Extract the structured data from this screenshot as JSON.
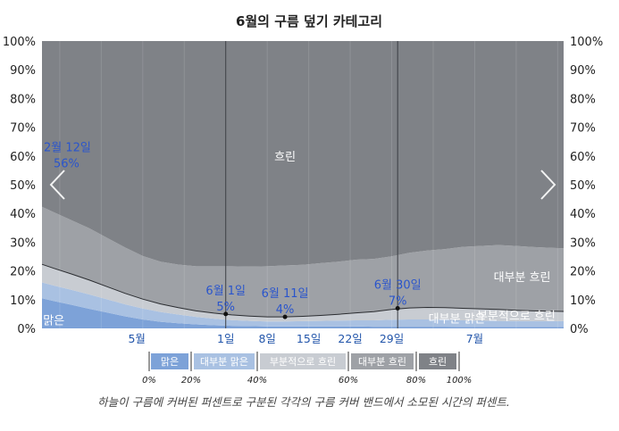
{
  "chart_data": {
    "type": "area",
    "title": "6월의 구름 덮기 카테고리",
    "caption": "하늘이 구름에 커버된 퍼센트로 구분된 각각의 구름 커버 밴드에서 소모된 시간의 퍼센트.",
    "ylim": [
      0,
      100
    ],
    "y_left_ticks": [
      "0%",
      "10%",
      "20%",
      "30%",
      "40%",
      "50%",
      "60%",
      "70%",
      "80%",
      "90%",
      "100%"
    ],
    "y_right_ticks": [
      "100%",
      "90%",
      "80%",
      "70%",
      "60%",
      "50%",
      "40%",
      "30%",
      "20%",
      "10%",
      "0%"
    ],
    "x_ticks": [
      {
        "day": 17,
        "label": "5월"
      },
      {
        "day": 32,
        "label": "1일"
      },
      {
        "day": 39,
        "label": "8일"
      },
      {
        "day": 46,
        "label": "15일"
      },
      {
        "day": 53,
        "label": "22일"
      },
      {
        "day": 60,
        "label": "29일"
      },
      {
        "day": 74,
        "label": "7월"
      }
    ],
    "x_days": [
      1,
      3,
      6,
      9,
      12,
      15,
      18,
      21,
      24,
      27,
      30,
      33,
      36,
      39,
      42,
      45,
      48,
      51,
      54,
      57,
      60,
      63,
      66,
      69,
      72,
      75,
      78,
      81,
      84,
      87,
      89
    ],
    "series": [
      {
        "name": "맑은",
        "color": "#7da2d8",
        "values": [
          10.5,
          9.5,
          8.2,
          6.8,
          5.5,
          4.2,
          3.1,
          2.3,
          1.8,
          1.4,
          1.1,
          0.9,
          0.8,
          0.7,
          0.7,
          0.7,
          0.7,
          0.7,
          0.7,
          0.6,
          0.6,
          0.6,
          0.6,
          0.6,
          0.5,
          0.5,
          0.5,
          0.5,
          0.5,
          0.5,
          0.5
        ]
      },
      {
        "name": "대부분 맑은",
        "color": "#a9c1e2",
        "values": [
          5.5,
          5.4,
          5.2,
          5.0,
          4.6,
          4.2,
          3.8,
          3.4,
          3.0,
          2.6,
          2.3,
          2.0,
          1.8,
          1.7,
          1.7,
          1.8,
          1.9,
          2.0,
          2.1,
          2.2,
          2.4,
          2.5,
          2.5,
          2.4,
          2.3,
          2.2,
          2.1,
          2.0,
          2.0,
          2.0,
          2.0
        ]
      },
      {
        "name": "부분적으로 흐린",
        "color": "#c8ccd2",
        "values": [
          6.3,
          6.0,
          5.5,
          5.0,
          4.4,
          3.8,
          3.3,
          2.8,
          2.4,
          2.1,
          1.9,
          1.8,
          1.7,
          1.6,
          1.6,
          1.7,
          1.9,
          2.2,
          2.6,
          3.0,
          3.6,
          4.0,
          4.2,
          4.2,
          4.2,
          4.1,
          4.0,
          3.8,
          3.6,
          3.5,
          3.4
        ]
      },
      {
        "name": "대부분 흐린",
        "color": "#9ea1a6",
        "values": [
          20.0,
          19.5,
          18.7,
          18.0,
          17.0,
          16.0,
          15.0,
          14.7,
          15.0,
          15.5,
          16.3,
          16.9,
          17.2,
          17.6,
          17.9,
          17.9,
          18.2,
          18.3,
          18.5,
          18.4,
          18.5,
          19.2,
          19.8,
          20.4,
          21.4,
          21.9,
          22.4,
          22.4,
          22.2,
          22.0,
          22.0
        ]
      },
      {
        "name": "흐린",
        "color": "#7f8287",
        "values": [
          57.7,
          59.6,
          62.4,
          65.2,
          68.5,
          71.8,
          74.8,
          76.8,
          77.8,
          78.4,
          78.4,
          78.4,
          78.5,
          78.4,
          78.1,
          77.9,
          77.3,
          76.8,
          76.1,
          75.8,
          74.9,
          73.7,
          72.9,
          72.4,
          71.6,
          71.3,
          71.0,
          71.3,
          71.7,
          72.0,
          72.1
        ]
      }
    ],
    "clearer_line": [
      22.3,
      20.9,
      18.9,
      16.8,
      14.5,
      12.2,
      10.2,
      8.5,
      7.2,
      6.1,
      5.3,
      4.7,
      4.3,
      4.0,
      4.0,
      4.2,
      4.5,
      4.9,
      5.4,
      5.8,
      6.6,
      7.1,
      7.3,
      7.2,
      7.0,
      6.8,
      6.6,
      6.3,
      6.1,
      6.0,
      5.9
    ],
    "annotations": [
      {
        "day": 1,
        "value": 56,
        "label": "2월 12일",
        "value_label": "56%",
        "marker": false
      },
      {
        "day": 32,
        "value": 5,
        "label": "6월 1일",
        "value_label": "5%",
        "marker": true
      },
      {
        "day": 42,
        "value": 4,
        "label": "6월 11일",
        "value_label": "4%",
        "marker": true
      },
      {
        "day": 61,
        "value": 7,
        "label": "6월 30일",
        "value_label": "7%",
        "marker": true
      }
    ],
    "band_labels": [
      {
        "text": "흐린",
        "day": 42,
        "value": 60
      },
      {
        "text": "대부분 흐린",
        "day": 82,
        "value": 18
      },
      {
        "text": "부분적으로 흐린",
        "day": 81,
        "value": 4.5
      },
      {
        "text": "대부분 맑은",
        "day": 71,
        "value": 3.5
      },
      {
        "text": "맑은",
        "day": 3,
        "value": 3
      }
    ],
    "highlight_days": [
      32,
      61
    ],
    "legend": {
      "items": [
        {
          "label": "맑은",
          "color": "#7da2d8"
        },
        {
          "label": "대부분 맑은",
          "color": "#a9c1e2"
        },
        {
          "label": "부분적으로 흐린",
          "color": "#c8ccd2"
        },
        {
          "label": "대부분 흐린",
          "color": "#9ea1a6"
        },
        {
          "label": "흐린",
          "color": "#7f8287"
        }
      ],
      "thresholds": [
        "0%",
        "20%",
        "40%",
        "60%",
        "80%",
        "100%"
      ]
    },
    "nav": {
      "prev_icon": "chevron-left-icon",
      "next_icon": "chevron-right-icon"
    }
  }
}
